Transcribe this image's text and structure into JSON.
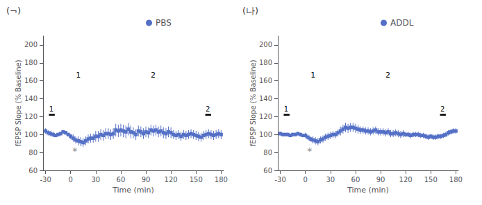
{
  "chart_data": [
    {
      "type": "line",
      "title": "(¬)",
      "series": [
        {
          "name": "PBS",
          "marker": "square",
          "values": [
            104,
            102,
            101,
            100,
            99,
            100,
            101,
            103,
            102,
            100,
            98,
            96,
            94,
            93,
            92,
            91,
            93,
            95,
            96,
            96,
            98,
            98,
            100,
            99,
            101,
            101,
            100,
            101,
            105,
            104,
            105,
            104,
            103,
            106,
            103,
            102,
            100,
            104,
            103,
            101,
            103,
            102,
            105,
            104,
            105,
            103,
            104,
            102,
            101,
            103,
            102,
            100,
            99,
            100,
            98,
            100,
            99,
            100,
            101,
            100,
            99,
            98,
            97,
            99,
            100,
            101,
            100,
            99,
            100,
            101,
            100
          ],
          "yerr": [
            3,
            3,
            3,
            3,
            2,
            2,
            2,
            2,
            2,
            2,
            3,
            4,
            4,
            5,
            5,
            5,
            5,
            5,
            5,
            5,
            6,
            6,
            6,
            6,
            6,
            6,
            6,
            6,
            7,
            7,
            7,
            7,
            7,
            7,
            7,
            6,
            6,
            6,
            6,
            6,
            6,
            6,
            6,
            6,
            6,
            6,
            6,
            6,
            6,
            6,
            6,
            5,
            5,
            5,
            5,
            5,
            5,
            5,
            5,
            5,
            5,
            5,
            5,
            5,
            5,
            5,
            5,
            5,
            5,
            5,
            5
          ]
        }
      ],
      "x": [
        -30,
        -27,
        -24,
        -21,
        -18,
        -15,
        -12,
        -9,
        -6,
        -3,
        0,
        3,
        6,
        9,
        12,
        15,
        18,
        21,
        24,
        27,
        30,
        33,
        36,
        39,
        42,
        45,
        48,
        51,
        54,
        57,
        60,
        63,
        66,
        69,
        72,
        75,
        78,
        81,
        84,
        87,
        90,
        93,
        96,
        99,
        102,
        105,
        108,
        111,
        114,
        117,
        120,
        123,
        126,
        129,
        132,
        135,
        138,
        141,
        144,
        147,
        150,
        153,
        156,
        159,
        162,
        165,
        168,
        171,
        174,
        177,
        180
      ],
      "xlabel": "Time (min)",
      "ylabel": "fEPSP Slope (% Baseline)",
      "xlim": [
        -33,
        183
      ],
      "ylim": [
        60,
        210
      ],
      "xticks": [
        -30,
        0,
        30,
        60,
        90,
        120,
        150,
        180
      ],
      "yticks": [
        60,
        80,
        100,
        120,
        140,
        160,
        180,
        200
      ],
      "grid": false,
      "legend": "top",
      "annotations": [
        {
          "text": "*",
          "x": 5,
          "y": 82
        }
      ],
      "periods": [
        {
          "label": "1",
          "x": [
            -26,
            -19
          ],
          "y": 122,
          "label_x": -23,
          "label_y": 124
        },
        {
          "label": "2",
          "x": [
            161,
            168
          ],
          "y": 122,
          "label_x": 164,
          "label_y": 124
        }
      ],
      "inset_labels": [
        "1",
        "2"
      ]
    },
    {
      "type": "line",
      "title": "(나)",
      "series": [
        {
          "name": "ADDL",
          "marker": "square",
          "values": [
            101,
            100,
            100,
            100,
            99,
            100,
            100,
            101,
            100,
            99,
            99,
            97,
            95,
            94,
            93,
            92,
            94,
            95,
            97,
            98,
            99,
            100,
            100,
            102,
            104,
            106,
            108,
            107,
            108,
            108,
            107,
            106,
            105,
            105,
            104,
            104,
            103,
            104,
            105,
            103,
            103,
            103,
            102,
            103,
            101,
            101,
            102,
            101,
            100,
            101,
            100,
            100,
            99,
            100,
            100,
            100,
            99,
            99,
            98,
            97,
            98,
            97,
            97,
            98,
            98,
            99,
            100,
            102,
            103,
            104,
            104
          ],
          "yerr": [
            2,
            2,
            2,
            2,
            2,
            2,
            2,
            2,
            2,
            2,
            3,
            3,
            3,
            4,
            4,
            4,
            4,
            4,
            4,
            4,
            4,
            4,
            4,
            4,
            5,
            5,
            5,
            5,
            5,
            5,
            5,
            5,
            4,
            4,
            4,
            4,
            4,
            4,
            4,
            4,
            4,
            4,
            4,
            4,
            4,
            4,
            4,
            4,
            4,
            4,
            3,
            3,
            3,
            3,
            3,
            3,
            3,
            3,
            3,
            3,
            3,
            3,
            3,
            3,
            3,
            3,
            3,
            3,
            3,
            3,
            3
          ]
        }
      ],
      "x": [
        -30,
        -27,
        -24,
        -21,
        -18,
        -15,
        -12,
        -9,
        -6,
        -3,
        0,
        3,
        6,
        9,
        12,
        15,
        18,
        21,
        24,
        27,
        30,
        33,
        36,
        39,
        42,
        45,
        48,
        51,
        54,
        57,
        60,
        63,
        66,
        69,
        72,
        75,
        78,
        81,
        84,
        87,
        90,
        93,
        96,
        99,
        102,
        105,
        108,
        111,
        114,
        117,
        120,
        123,
        126,
        129,
        132,
        135,
        138,
        141,
        144,
        147,
        150,
        153,
        156,
        159,
        162,
        165,
        168,
        171,
        174,
        177,
        180
      ],
      "xlabel": "Time (min)",
      "ylabel": "fEPSP Slope (% Baseline)",
      "xlim": [
        -33,
        183
      ],
      "ylim": [
        60,
        210
      ],
      "xticks": [
        -30,
        0,
        30,
        60,
        90,
        120,
        150,
        180
      ],
      "yticks": [
        60,
        80,
        100,
        120,
        140,
        160,
        180,
        200
      ],
      "grid": false,
      "legend": "top",
      "annotations": [
        {
          "text": "*",
          "x": 5,
          "y": 82
        }
      ],
      "periods": [
        {
          "label": "1",
          "x": [
            -26,
            -19
          ],
          "y": 122,
          "label_x": -23,
          "label_y": 124
        },
        {
          "label": "2",
          "x": [
            161,
            168
          ],
          "y": 122,
          "label_x": 164,
          "label_y": 124
        }
      ],
      "inset_labels": [
        "1",
        "2"
      ]
    }
  ]
}
